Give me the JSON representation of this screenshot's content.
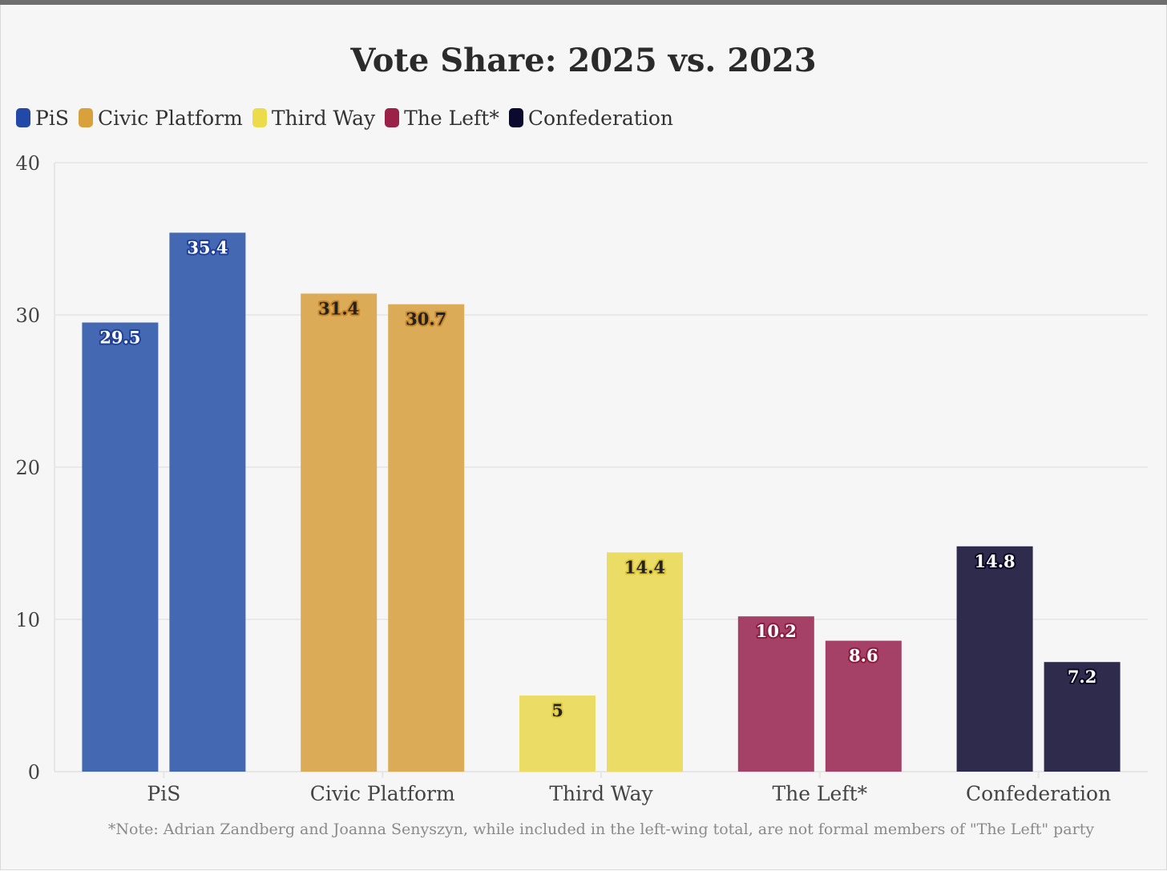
{
  "title": "Vote Share: 2025 vs. 2023",
  "note": "*Note: Adrian Zandberg and Joanna Senyszyn, while included in the left-wing total, are not formal members of \"The Left\" party",
  "legend": [
    {
      "label": "PiS",
      "color": "#2249a8"
    },
    {
      "label": "Civic Platform",
      "color": "#d9a13c"
    },
    {
      "label": "Third Way",
      "color": "#ecdc4c"
    },
    {
      "label": "The Left*",
      "color": "#9c2148"
    },
    {
      "label": "Confederation",
      "color": "#0b0a2e"
    }
  ],
  "chart_data": {
    "type": "bar",
    "categories": [
      "PiS",
      "Civic Platform",
      "Third Way",
      "The Left*",
      "Confederation"
    ],
    "bars_per_category": 2,
    "values": [
      [
        29.5,
        35.4
      ],
      [
        31.4,
        30.7
      ],
      [
        5,
        14.4
      ],
      [
        10.2,
        8.6
      ],
      [
        14.8,
        7.2
      ]
    ],
    "bar_colors": [
      "#4469b2",
      "#dbab57",
      "#ebdc66",
      "#a54166",
      "#2e2b4d"
    ],
    "label_text_colors": [
      "#ffffff",
      "#222222",
      "#222222",
      "#ffffff",
      "#ffffff"
    ],
    "label_outline_colors": [
      "#1f3f99",
      "#c9892a",
      "#e0c93a",
      "#8c1a3e",
      "#0a0a24"
    ],
    "ylim": [
      0,
      40
    ],
    "yticks": [
      0,
      10,
      20,
      30,
      40
    ],
    "grid": true,
    "legend_position": "top-left"
  }
}
